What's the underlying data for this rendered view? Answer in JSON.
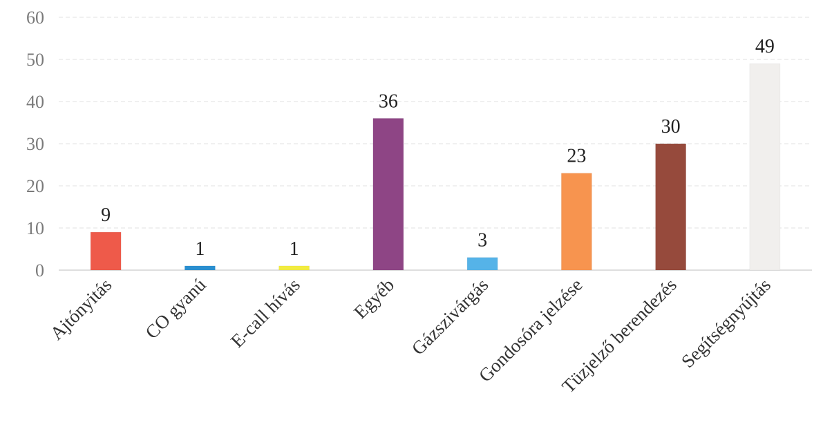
{
  "chart_data": {
    "type": "bar",
    "title": "",
    "xlabel": "",
    "ylabel": "",
    "ylim": [
      0,
      60
    ],
    "yticks": [
      0,
      10,
      20,
      30,
      40,
      50,
      60
    ],
    "grid": true,
    "legend": "none",
    "categories": [
      "Ajtónyitás",
      "CO gyanú",
      "E-call hívás",
      "Egyéb",
      "Gázszivárgás",
      "Gondosóra jelzése",
      "Tüzjelző berendezés",
      "Segítségnyújtás"
    ],
    "values": [
      9,
      1,
      1,
      36,
      3,
      23,
      30,
      49
    ],
    "colors": [
      "#ee5a4a",
      "#2a8fd0",
      "#f2ec40",
      "#8e4585",
      "#55b3e8",
      "#f7944f",
      "#964a3c",
      "#f1efed"
    ]
  }
}
